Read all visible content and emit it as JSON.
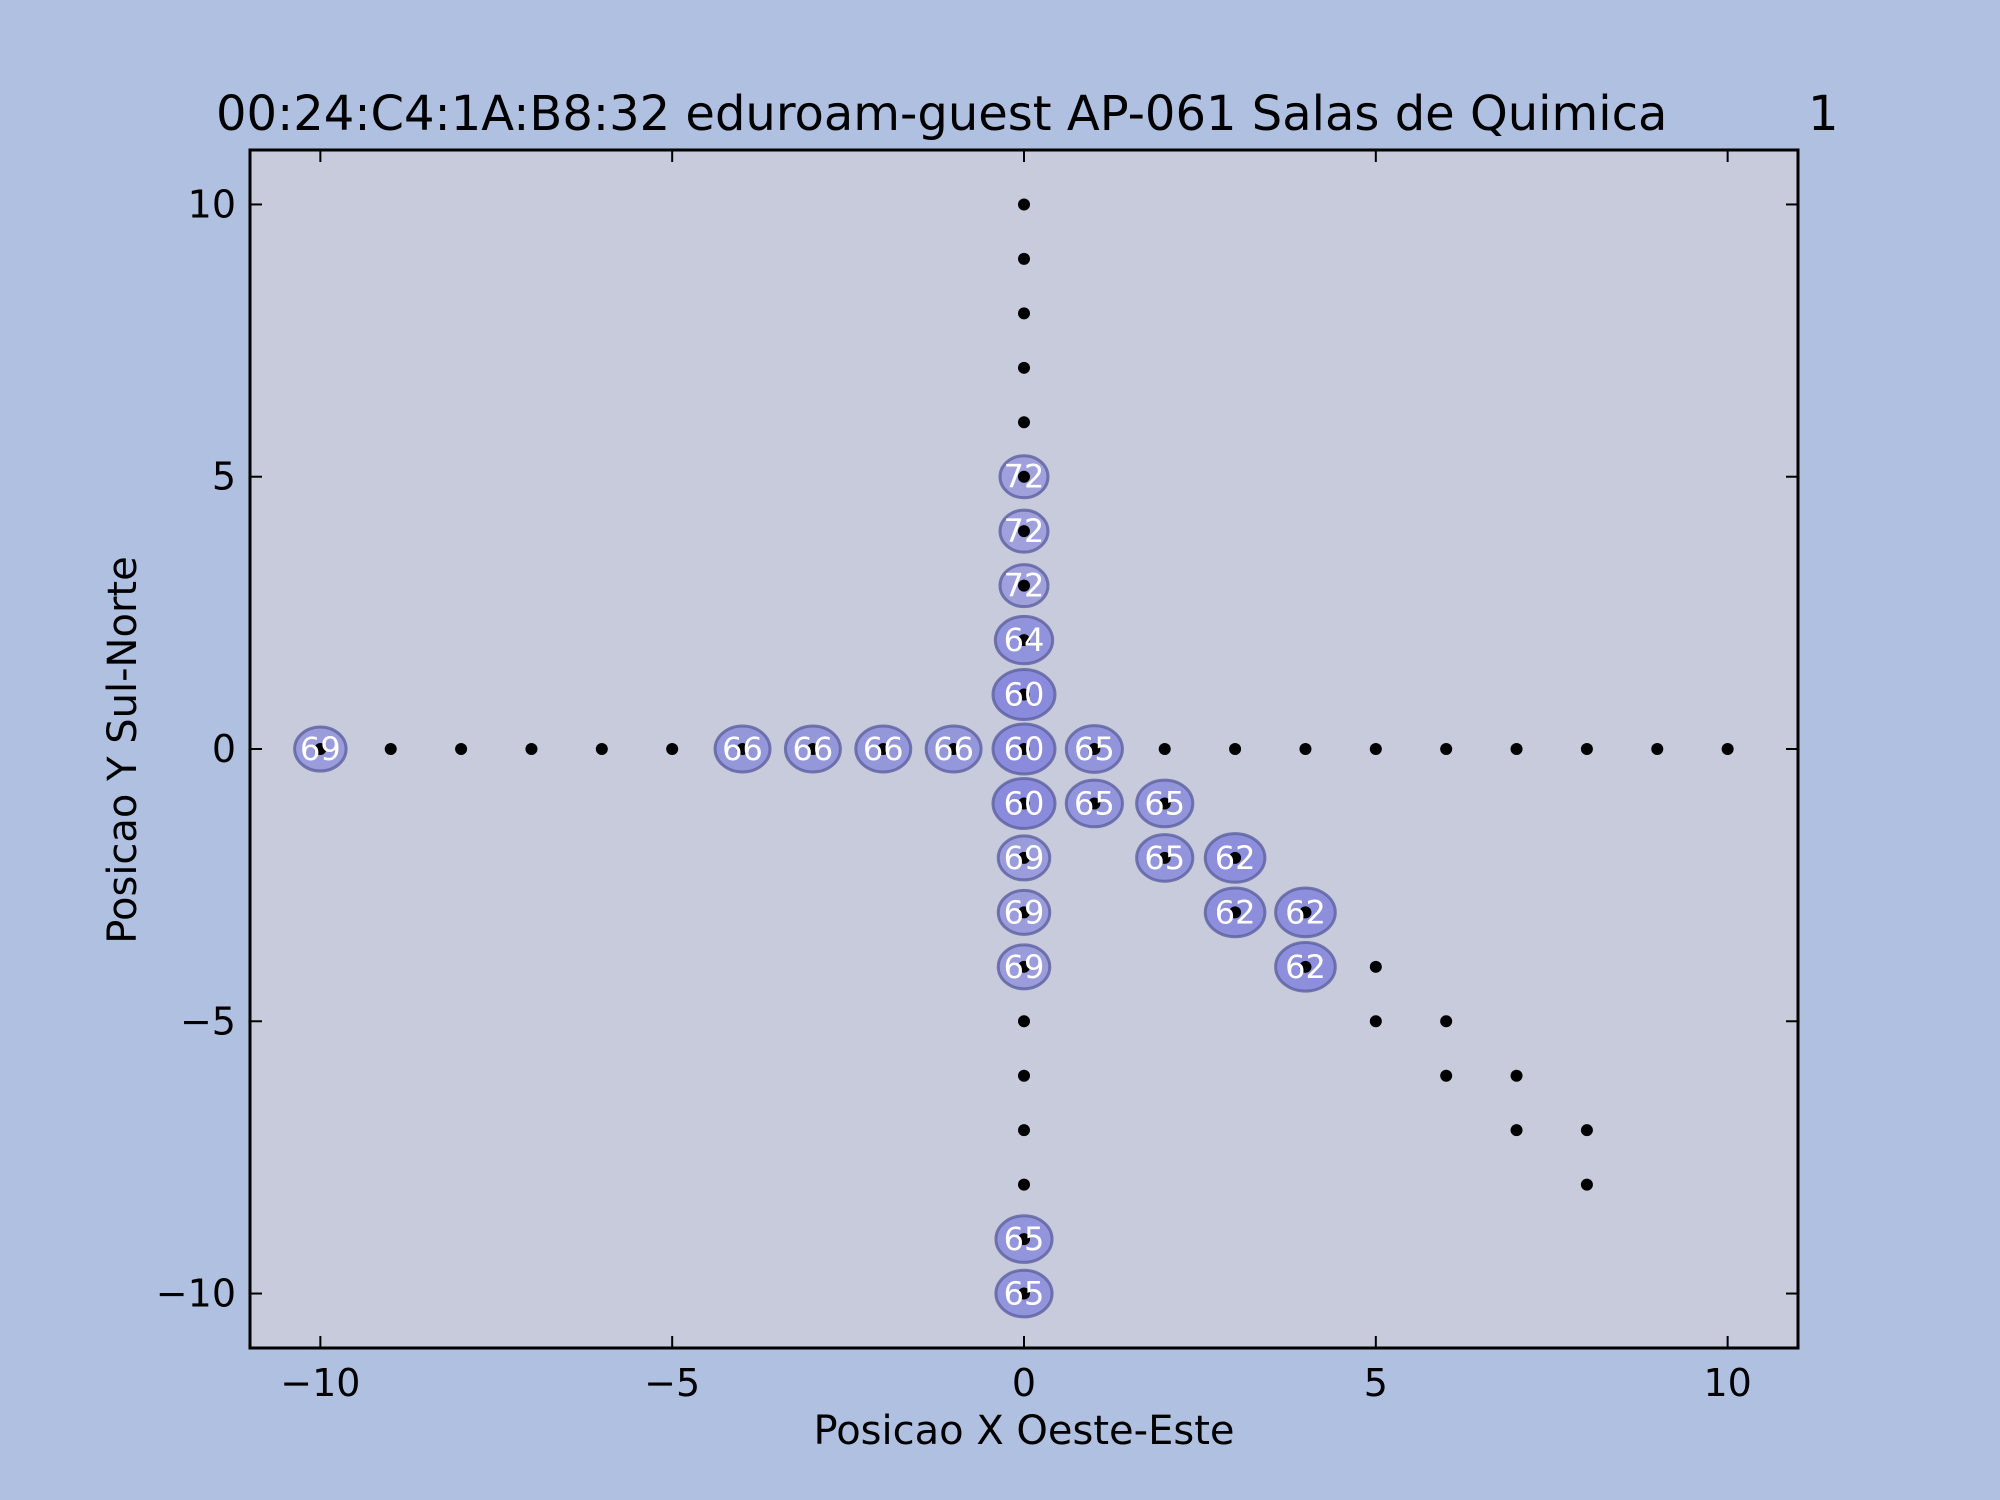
{
  "colors": {
    "background": "#b0c0e0",
    "plot_area": "#c8cbdb",
    "bubble_fill": "#7f80dc",
    "bubble_edge": "#5c5fa0",
    "point": "#000000",
    "bubble_text": "#ffffff"
  },
  "chart_data": {
    "type": "scatter",
    "title": "00:24:C4:1A:B8:32 eduroam-guest AP-061 Salas de Quimica",
    "title_number": "1",
    "xlabel": "Posicao X Oeste-Este",
    "ylabel": "Posicao Y Sul-Norte",
    "xlim": [
      -11,
      11
    ],
    "ylim": [
      -11,
      11
    ],
    "xticks": [
      -10,
      -5,
      0,
      5,
      10
    ],
    "yticks": [
      -10,
      -5,
      0,
      5,
      10
    ],
    "xtick_labels": [
      "−10",
      "−5",
      "0",
      "5",
      "10"
    ],
    "ytick_labels": [
      "−10",
      "−5",
      "0",
      "5",
      "10"
    ],
    "grid": false,
    "points": [
      [
        0,
        10
      ],
      [
        0,
        9
      ],
      [
        0,
        8
      ],
      [
        0,
        7
      ],
      [
        0,
        6
      ],
      [
        0,
        5
      ],
      [
        0,
        4
      ],
      [
        0,
        3
      ],
      [
        0,
        2
      ],
      [
        0,
        1
      ],
      [
        0,
        0
      ],
      [
        0,
        -1
      ],
      [
        0,
        -2
      ],
      [
        0,
        -3
      ],
      [
        0,
        -4
      ],
      [
        0,
        -5
      ],
      [
        0,
        -6
      ],
      [
        0,
        -7
      ],
      [
        0,
        -8
      ],
      [
        0,
        -9
      ],
      [
        0,
        -10
      ],
      [
        -10,
        0
      ],
      [
        -9,
        0
      ],
      [
        -8,
        0
      ],
      [
        -7,
        0
      ],
      [
        -6,
        0
      ],
      [
        -5,
        0
      ],
      [
        -4,
        0
      ],
      [
        -3,
        0
      ],
      [
        -2,
        0
      ],
      [
        -1,
        0
      ],
      [
        1,
        0
      ],
      [
        2,
        0
      ],
      [
        3,
        0
      ],
      [
        4,
        0
      ],
      [
        5,
        0
      ],
      [
        6,
        0
      ],
      [
        7,
        0
      ],
      [
        8,
        0
      ],
      [
        9,
        0
      ],
      [
        10,
        0
      ],
      [
        1,
        -1
      ],
      [
        2,
        -1
      ],
      [
        2,
        -2
      ],
      [
        3,
        -2
      ],
      [
        3,
        -3
      ],
      [
        4,
        -3
      ],
      [
        4,
        -4
      ],
      [
        5,
        -4
      ],
      [
        5,
        -5
      ],
      [
        6,
        -5
      ],
      [
        6,
        -6
      ],
      [
        7,
        -6
      ],
      [
        7,
        -7
      ],
      [
        8,
        -7
      ],
      [
        8,
        -8
      ]
    ],
    "readings": [
      {
        "x": 0,
        "y": 5,
        "value": 72
      },
      {
        "x": 0,
        "y": 4,
        "value": 72
      },
      {
        "x": 0,
        "y": 3,
        "value": 72
      },
      {
        "x": 0,
        "y": 2,
        "value": 64
      },
      {
        "x": 0,
        "y": 1,
        "value": 60
      },
      {
        "x": 0,
        "y": 0,
        "value": 60
      },
      {
        "x": 0,
        "y": -1,
        "value": 60
      },
      {
        "x": 0,
        "y": -2,
        "value": 69
      },
      {
        "x": 0,
        "y": -3,
        "value": 69
      },
      {
        "x": 0,
        "y": -4,
        "value": 69
      },
      {
        "x": 0,
        "y": -9,
        "value": 65
      },
      {
        "x": 0,
        "y": -10,
        "value": 65
      },
      {
        "x": -10,
        "y": 0,
        "value": 69
      },
      {
        "x": -4,
        "y": 0,
        "value": 66
      },
      {
        "x": -3,
        "y": 0,
        "value": 66
      },
      {
        "x": -2,
        "y": 0,
        "value": 66
      },
      {
        "x": -1,
        "y": 0,
        "value": 66
      },
      {
        "x": 1,
        "y": 0,
        "value": 65
      },
      {
        "x": 1,
        "y": -1,
        "value": 65
      },
      {
        "x": 2,
        "y": -1,
        "value": 65
      },
      {
        "x": 2,
        "y": -2,
        "value": 65
      },
      {
        "x": 3,
        "y": -2,
        "value": 62
      },
      {
        "x": 3,
        "y": -3,
        "value": 62
      },
      {
        "x": 4,
        "y": -3,
        "value": 62
      },
      {
        "x": 4,
        "y": -4,
        "value": 62
      }
    ]
  }
}
